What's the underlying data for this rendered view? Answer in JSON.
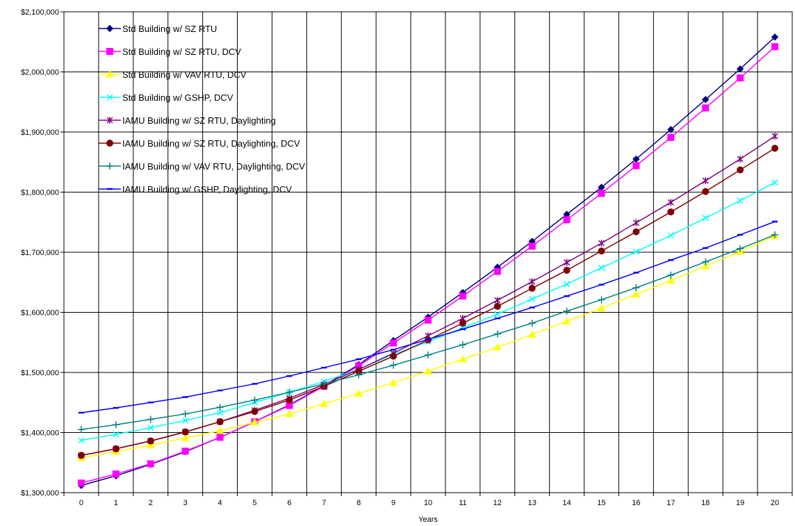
{
  "chart_data": {
    "type": "line",
    "xlabel": "Years",
    "ylabel": "",
    "title": "",
    "x": [
      0,
      1,
      2,
      3,
      4,
      5,
      6,
      7,
      8,
      9,
      10,
      11,
      12,
      13,
      14,
      15,
      16,
      17,
      18,
      19,
      20
    ],
    "ylim": [
      1300000,
      2100000
    ],
    "y_ticks": [
      "$1,300,000",
      "$1,400,000",
      "$1,500,000",
      "$1,600,000",
      "$1,700,000",
      "$1,800,000",
      "$1,900,000",
      "$2,000,000",
      "$2,100,000"
    ],
    "y_tick_values": [
      1300000,
      1400000,
      1500000,
      1600000,
      1700000,
      1800000,
      1900000,
      2000000,
      2100000
    ],
    "grid": true,
    "legend_position": "top-left",
    "series": [
      {
        "name": "Std Building w/ SZ RTU",
        "color": "#000080",
        "marker": "diamond",
        "values": [
          1312000,
          1328000,
          1347000,
          1368000,
          1392000,
          1418000,
          1446000,
          1478000,
          1513000,
          1553000,
          1592000,
          1633000,
          1675000,
          1718000,
          1763000,
          1808000,
          1855000,
          1904000,
          1954000,
          2005000,
          2058000
        ]
      },
      {
        "name": "Std Building w/ SZ RTU, DCV",
        "color": "#FF00FF",
        "marker": "square",
        "values": [
          1316000,
          1331000,
          1348000,
          1369000,
          1392000,
          1418000,
          1445000,
          1477000,
          1511000,
          1549000,
          1587000,
          1627000,
          1668000,
          1710000,
          1754000,
          1798000,
          1844000,
          1891000,
          1940000,
          1990000,
          2042000
        ]
      },
      {
        "name": "Std Building w/ VAV RTU, DCV",
        "color": "#FFFF00",
        "marker": "triangle",
        "values": [
          1358000,
          1368000,
          1379000,
          1391000,
          1403000,
          1417000,
          1431000,
          1448000,
          1465000,
          1483000,
          1502000,
          1522000,
          1542000,
          1563000,
          1585000,
          1607000,
          1630000,
          1653000,
          1677000,
          1701000,
          1727000
        ]
      },
      {
        "name": "Std Building w/ GSHP, DCV",
        "color": "#00FFFF",
        "marker": "x",
        "values": [
          1387000,
          1397000,
          1408000,
          1420000,
          1433000,
          1450000,
          1467000,
          1485000,
          1505000,
          1530000,
          1551000,
          1574000,
          1597000,
          1622000,
          1647000,
          1674000,
          1701000,
          1728000,
          1757000,
          1786000,
          1816000
        ]
      },
      {
        "name": "IAMU Building w/ SZ RTU, Daylighting",
        "color": "#800080",
        "marker": "star",
        "values": [
          1362000,
          1373000,
          1386000,
          1401000,
          1418000,
          1437000,
          1457000,
          1480000,
          1505000,
          1532000,
          1561000,
          1590000,
          1620000,
          1651000,
          1683000,
          1715000,
          1749000,
          1783000,
          1819000,
          1855000,
          1893000
        ]
      },
      {
        "name": "IAMU Building w/ SZ RTU, Daylighting, DCV",
        "color": "#800000",
        "marker": "circle",
        "values": [
          1362000,
          1373000,
          1386000,
          1401000,
          1418000,
          1435000,
          1454000,
          1477000,
          1502000,
          1527000,
          1554000,
          1582000,
          1610000,
          1640000,
          1670000,
          1702000,
          1734000,
          1767000,
          1801000,
          1837000,
          1873000
        ]
      },
      {
        "name": "IAMU Building w/ VAV RTU, Daylighting, DCV",
        "color": "#008080",
        "marker": "plus",
        "values": [
          1405000,
          1413000,
          1422000,
          1431000,
          1442000,
          1454000,
          1467000,
          1481000,
          1496000,
          1512000,
          1529000,
          1546000,
          1564000,
          1582000,
          1602000,
          1621000,
          1641000,
          1662000,
          1684000,
          1706000,
          1729000
        ]
      },
      {
        "name": "IAMU Building w/ GSHP, Daylighting, DCV",
        "color": "#0000FF",
        "marker": "dash",
        "values": [
          1433000,
          1441000,
          1450000,
          1459000,
          1470000,
          1481000,
          1494000,
          1508000,
          1522000,
          1538000,
          1555000,
          1572000,
          1590000,
          1608000,
          1627000,
          1646000,
          1666000,
          1687000,
          1707000,
          1729000,
          1751000
        ]
      }
    ]
  }
}
